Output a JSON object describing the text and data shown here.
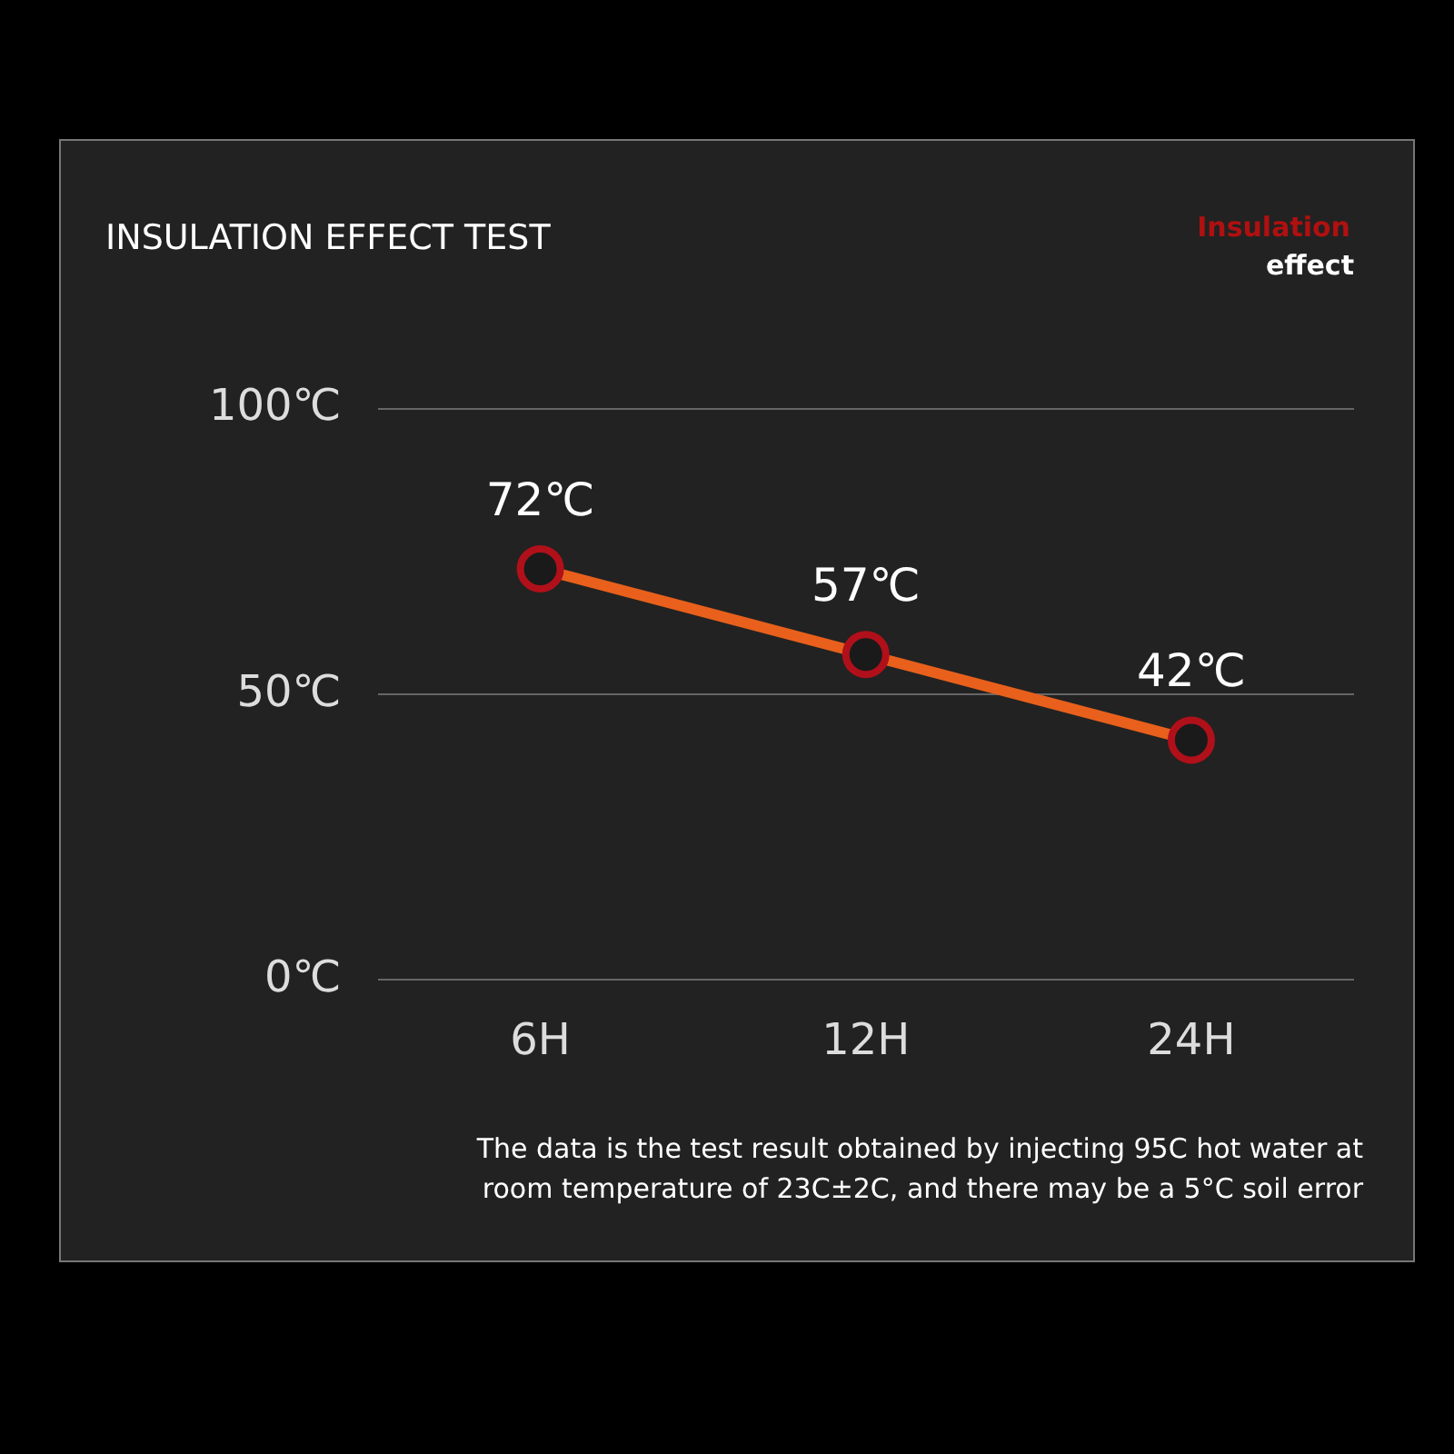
{
  "chart_data": {
    "type": "line",
    "title": "INSULATION EFFECT TEST",
    "categories": [
      "6H",
      "12H",
      "24H"
    ],
    "series": [
      {
        "color": "#e8601c",
        "values": [
          72,
          57,
          42
        ],
        "value_labels": [
          "72℃",
          "57℃",
          "42℃"
        ]
      }
    ],
    "ylim": [
      0,
      100
    ],
    "yticks": [
      {
        "value": 0,
        "label": "0℃"
      },
      {
        "value": 50,
        "label": "50℃"
      },
      {
        "value": 100,
        "label": "100℃"
      }
    ],
    "grid": "y",
    "marker": "circle",
    "line_style": "solid",
    "legend": false,
    "annotations": [
      "Insulation",
      "effect",
      "The data is the test result obtained by injecting 95C hot water at",
      "room temperature of 23C±2C, and there may be a 5°C soil error"
    ]
  }
}
